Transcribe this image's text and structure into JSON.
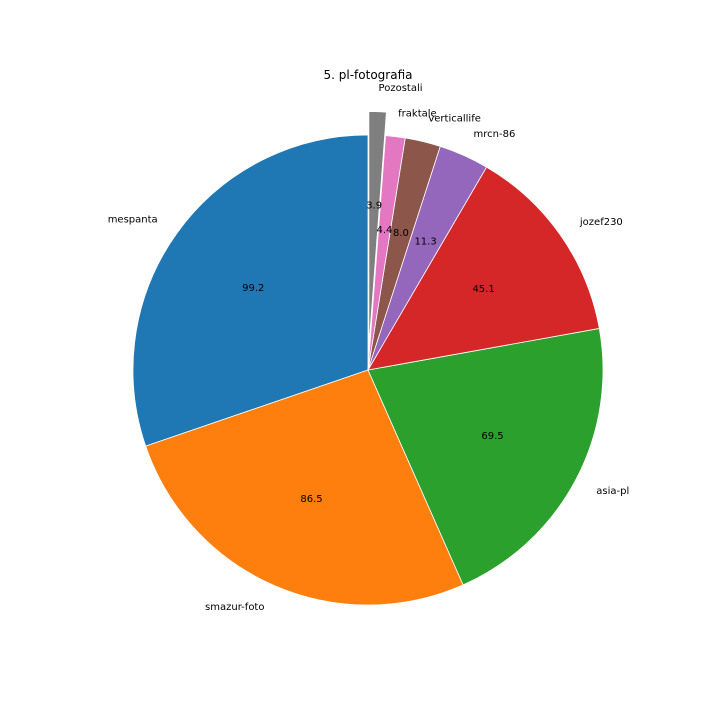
{
  "chart_data": {
    "type": "pie",
    "title": "5. pl-fotografia",
    "start": "top, counter-clockwise",
    "slices": [
      {
        "name": "mespanta",
        "value": 99.2,
        "color": "#1f77b4"
      },
      {
        "name": "smazur-foto",
        "value": 86.5,
        "color": "#ff7f0e"
      },
      {
        "name": "asia-pl",
        "value": 69.5,
        "color": "#2ca02c"
      },
      {
        "name": "jozef230",
        "value": 45.1,
        "color": "#d62728"
      },
      {
        "name": "mrcn-86",
        "value": 11.3,
        "color": "#9467bd"
      },
      {
        "name": "verticallife",
        "value": 8.0,
        "color": "#8c564b"
      },
      {
        "name": "fraktale",
        "value": 4.4,
        "color": "#e377c2"
      },
      {
        "name": "Pozostali",
        "value": 3.9,
        "color": "#7f7f7f",
        "exploded": true
      }
    ]
  }
}
